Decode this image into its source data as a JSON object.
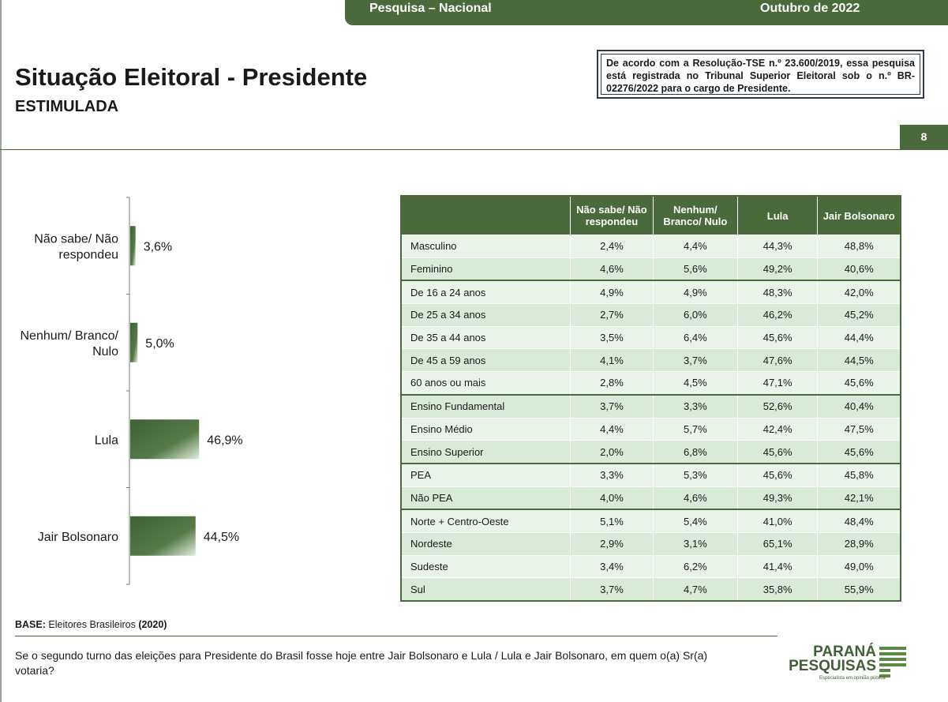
{
  "header": {
    "title": "Pesquisa – Nacional",
    "date": "Outubro de 2022",
    "page_number": "8"
  },
  "page": {
    "title": "Situação Eleitoral - Presidente",
    "subtitle": "ESTIMULADA"
  },
  "registration_note": {
    "prefix": "De acordo com a Resolução-TSE n.º 23.600/2019, essa pesquisa está registrada no Tribunal Superior Eleitoral sob o n.º ",
    "code": "BR-02276/2022",
    "suffix": " para o cargo de Presidente."
  },
  "colors": {
    "accent": "#4a6a3c",
    "row_light": "#eaf3ea",
    "row_dark": "#d9ead9"
  },
  "chart_data": [
    {
      "type": "bar",
      "orientation": "horizontal",
      "categories": [
        "Não sabe/ Não respondeu",
        "Nenhum/ Branco/ Nulo",
        "Lula",
        "Jair Bolsonaro"
      ],
      "category_lines": [
        [
          "Não sabe/ Não",
          "respondeu"
        ],
        [
          "Nenhum/ Branco/",
          "Nulo"
        ],
        [
          "Lula"
        ],
        [
          "Jair Bolsonaro"
        ]
      ],
      "values": [
        3.6,
        5.0,
        46.9,
        44.5
      ],
      "labels": [
        "3,6%",
        "5,0%",
        "46,9%",
        "44,5%"
      ],
      "unit": "%",
      "title": "",
      "xlabel": "",
      "ylabel": ""
    },
    {
      "type": "table",
      "columns": [
        "Não sabe/ Não respondeu",
        "Nenhum/ Branco/ Nulo",
        "Lula",
        "Jair Bolsonaro"
      ],
      "column_lines": [
        [
          "Não sabe/ Não",
          "respondeu"
        ],
        [
          "Nenhum/",
          "Branco/ Nulo"
        ],
        [
          "Lula"
        ],
        [
          "Jair Bolsonaro"
        ]
      ],
      "groups": [
        [
          {
            "label": "Masculino",
            "values": [
              "2,4%",
              "4,4%",
              "44,3%",
              "48,8%"
            ]
          },
          {
            "label": "Feminino",
            "values": [
              "4,6%",
              "5,6%",
              "49,2%",
              "40,6%"
            ]
          }
        ],
        [
          {
            "label": "De 16 a 24 anos",
            "values": [
              "4,9%",
              "4,9%",
              "48,3%",
              "42,0%"
            ]
          },
          {
            "label": "De 25 a 34 anos",
            "values": [
              "2,7%",
              "6,0%",
              "46,2%",
              "45,2%"
            ]
          },
          {
            "label": "De 35 a 44 anos",
            "values": [
              "3,5%",
              "6,4%",
              "45,6%",
              "44,4%"
            ]
          },
          {
            "label": "De 45 a 59 anos",
            "values": [
              "4,1%",
              "3,7%",
              "47,6%",
              "44,5%"
            ]
          },
          {
            "label": "60 anos ou mais",
            "values": [
              "2,8%",
              "4,5%",
              "47,1%",
              "45,6%"
            ]
          }
        ],
        [
          {
            "label": "Ensino Fundamental",
            "values": [
              "3,7%",
              "3,3%",
              "52,6%",
              "40,4%"
            ]
          },
          {
            "label": "Ensino Médio",
            "values": [
              "4,4%",
              "5,7%",
              "42,4%",
              "47,5%"
            ]
          },
          {
            "label": "Ensino Superior",
            "values": [
              "2,0%",
              "6,8%",
              "45,6%",
              "45,6%"
            ]
          }
        ],
        [
          {
            "label": "PEA",
            "values": [
              "3,3%",
              "5,3%",
              "45,6%",
              "45,8%"
            ]
          },
          {
            "label": "Não PEA",
            "values": [
              "4,0%",
              "4,6%",
              "49,3%",
              "42,1%"
            ]
          }
        ],
        [
          {
            "label": "Norte + Centro-Oeste",
            "values": [
              "5,1%",
              "5,4%",
              "41,0%",
              "48,4%"
            ]
          },
          {
            "label": "Nordeste",
            "values": [
              "2,9%",
              "3,1%",
              "65,1%",
              "28,9%"
            ]
          },
          {
            "label": "Sudeste",
            "values": [
              "3,4%",
              "6,2%",
              "41,4%",
              "49,0%"
            ]
          },
          {
            "label": "Sul",
            "values": [
              "3,7%",
              "4,7%",
              "35,8%",
              "55,9%"
            ]
          }
        ]
      ]
    }
  ],
  "footer": {
    "base_label": "BASE:",
    "base_text": " Eleitores Brasileiros ",
    "base_year": "(2020)",
    "question": "Se o segundo turno das eleições para Presidente do Brasil fosse hoje entre Jair Bolsonaro e Lula / Lula e Jair Bolsonaro, em quem o(a) Sr(a) votaria?"
  },
  "logo": {
    "line1": "PARANÁ",
    "line2": "PESQUISAS",
    "tagline": "Especialista em opinião pública"
  }
}
